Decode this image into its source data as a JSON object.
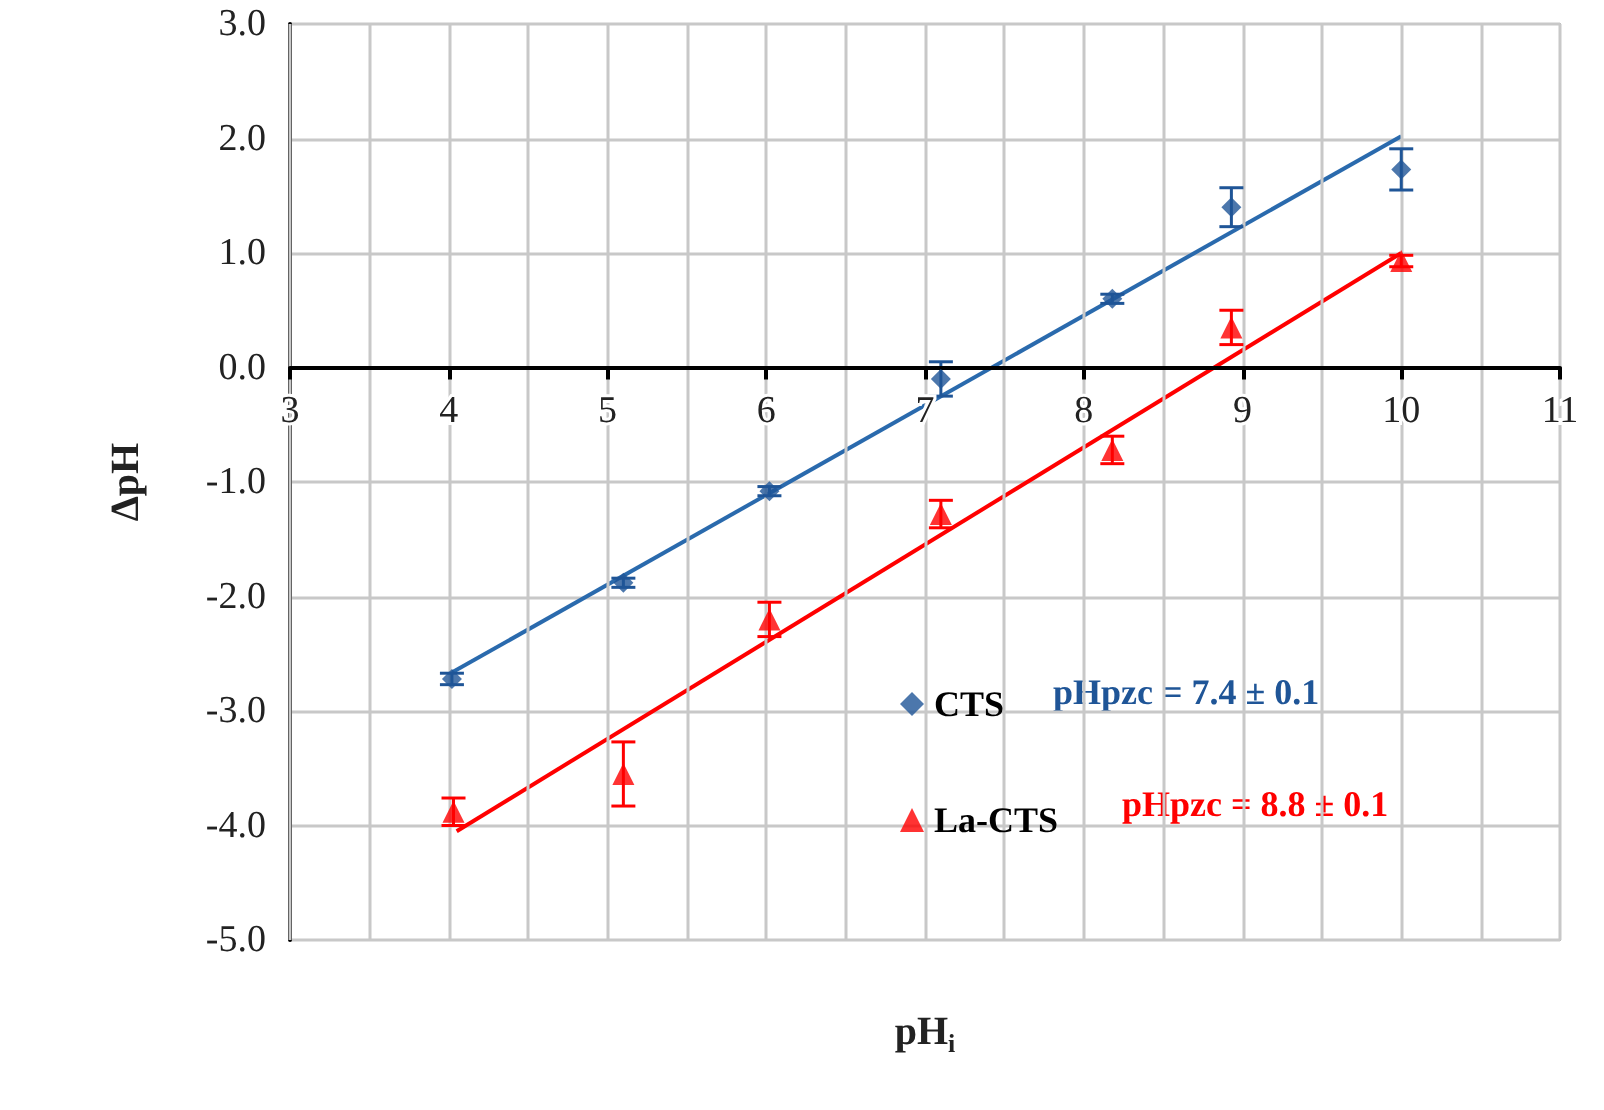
{
  "chart_data": {
    "type": "scatter",
    "xlabel": "pH$_{i}$",
    "ylabel": "ΔpH",
    "xlim": [
      3,
      11
    ],
    "xticks": [
      3,
      4,
      5,
      6,
      7,
      8,
      9,
      10,
      11
    ],
    "ylim": [
      -5,
      3
    ],
    "yticks": [
      {
        "value": -5,
        "label": "-5.0"
      },
      {
        "value": -4,
        "label": "-4.0"
      },
      {
        "value": -3,
        "label": "-3.0"
      },
      {
        "value": -2,
        "label": "-2.0"
      },
      {
        "value": -1,
        "label": "-1.0"
      },
      {
        "value": 0,
        "label": "0.0"
      },
      {
        "value": 1,
        "label": "1.0"
      },
      {
        "value": 2,
        "label": "2.0"
      },
      {
        "value": 3,
        "label": "3.0"
      }
    ],
    "grid": true,
    "legend": "center right",
    "series": [
      {
        "name": "CTS",
        "color": "#1f5597",
        "marker": "diamond",
        "x": [
          4.02,
          5.1,
          6.02,
          7.1,
          8.18,
          8.93,
          10.0
        ],
        "values": [
          -2.72,
          -1.88,
          -1.08,
          -0.1,
          0.6,
          1.4,
          1.73
        ],
        "errors": [
          0.05,
          0.04,
          0.04,
          0.15,
          0.04,
          0.17,
          0.18
        ]
      },
      {
        "name": "La-CTS",
        "color": "#ff0000",
        "marker": "triangle",
        "x": [
          4.03,
          5.1,
          6.02,
          7.1,
          8.18,
          8.93,
          10.0
        ],
        "values": [
          -3.88,
          -3.55,
          -2.2,
          -1.28,
          -0.72,
          0.35,
          0.93
        ],
        "errors": [
          0.12,
          0.28,
          0.15,
          0.12,
          0.12,
          0.15,
          0.05
        ]
      },
      {
        "type": "line",
        "color": "#2a6aad",
        "marker": "none",
        "x": [
          4.0,
          10.0
        ],
        "values": [
          -2.68,
          2.02
        ]
      },
      {
        "type": "line",
        "color": "#ff0000",
        "marker": "none",
        "x": [
          4.05,
          10.0
        ],
        "values": [
          -4.05,
          1.0
        ]
      }
    ],
    "annotations": [
      "pHpzc = 7.4 ± 0.1",
      "pHpzc = 8.8 ± 0.1"
    ]
  }
}
